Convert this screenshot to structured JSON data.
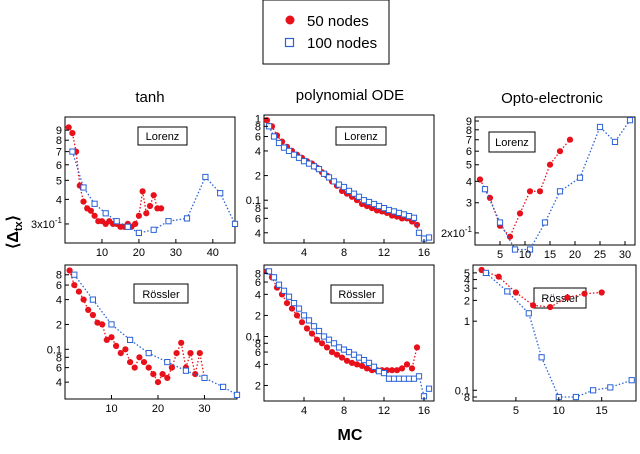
{
  "chart_data": {
    "type": "line",
    "xlabel": "MC",
    "ylabel": "⟨Δtx⟩",
    "ylabel_main": "⟨Δ",
    "ylabel_sub": "tx",
    "ylabel_end": "⟩",
    "legend": {
      "position": "top-center",
      "entries": [
        {
          "name": "50 nodes",
          "color": "#e8101a",
          "marker": "filled-circle",
          "style": "dotted"
        },
        {
          "name": "100 nodes",
          "color": "#2a62d6",
          "marker": "open-square",
          "style": "dotted"
        }
      ]
    },
    "columns": [
      {
        "title": "tanh"
      },
      {
        "title": "polynomial ODE"
      },
      {
        "title": "Opto-electronic"
      }
    ],
    "panels": [
      {
        "row": "Lorenz",
        "col": 0,
        "box_label": "Lorenz",
        "xlim": [
          0,
          46
        ],
        "ylim": [
          0.24,
          1.05
        ],
        "yscale": "log",
        "xticks": [
          {
            "v": 10,
            "t": "10"
          },
          {
            "v": 20,
            "t": "20"
          },
          {
            "v": 30,
            "t": "30"
          },
          {
            "v": 40,
            "t": "40"
          }
        ],
        "yticks": [
          {
            "v": 0.9,
            "t": "9"
          },
          {
            "v": 0.8,
            "t": "8"
          },
          {
            "v": 0.7,
            "t": "7"
          },
          {
            "v": 0.6,
            "t": "6"
          },
          {
            "v": 0.5,
            "t": "5"
          },
          {
            "v": 0.4,
            "t": "4"
          },
          {
            "v": 0.3,
            "t": "3x10"
          }
        ],
        "series": [
          {
            "name": "50 nodes",
            "x": [
              1,
              2,
              3,
              4,
              5,
              6,
              7,
              8,
              9,
              10,
              11,
              12,
              13,
              14,
              15,
              16,
              17,
              18,
              19,
              20,
              21,
              22,
              23,
              24,
              25,
              26
            ],
            "y": [
              0.93,
              0.87,
              0.7,
              0.47,
              0.39,
              0.36,
              0.35,
              0.33,
              0.31,
              0.31,
              0.3,
              0.31,
              0.3,
              0.3,
              0.29,
              0.29,
              0.3,
              0.29,
              0.3,
              0.33,
              0.44,
              0.34,
              0.37,
              0.42,
              0.36,
              0.36
            ]
          },
          {
            "name": "100 nodes",
            "x": [
              2,
              5,
              8,
              11,
              14,
              17,
              20,
              24,
              28,
              33,
              38,
              42,
              46
            ],
            "y": [
              0.7,
              0.46,
              0.38,
              0.34,
              0.31,
              0.29,
              0.27,
              0.28,
              0.31,
              0.32,
              0.52,
              0.43,
              0.3
            ]
          }
        ]
      },
      {
        "row": "Lorenz",
        "col": 1,
        "box_label": "Lorenz",
        "xlim": [
          0,
          17
        ],
        "ylim": [
          0.03,
          1.1
        ],
        "yscale": "log",
        "xticks": [
          {
            "v": 4,
            "t": "4"
          },
          {
            "v": 8,
            "t": "8"
          },
          {
            "v": 12,
            "t": "12"
          },
          {
            "v": 16,
            "t": "16"
          }
        ],
        "yticks": [
          {
            "v": 1,
            "t": "1"
          },
          {
            "v": 0.8,
            "t": "8"
          },
          {
            "v": 0.6,
            "t": "6"
          },
          {
            "v": 0.4,
            "t": "4"
          },
          {
            "v": 0.2,
            "t": "2"
          },
          {
            "v": 0.1,
            "t": "0.1"
          },
          {
            "v": 0.08,
            "t": "8"
          },
          {
            "v": 0.06,
            "t": "6"
          },
          {
            "v": 0.04,
            "t": "4"
          }
        ],
        "series": [
          {
            "name": "50 nodes",
            "x": [
              0.3,
              0.8,
              1.3,
              1.8,
              2.3,
              2.8,
              3.3,
              3.8,
              4.3,
              4.8,
              5.3,
              5.8,
              6.3,
              6.8,
              7.3,
              7.8,
              8.3,
              8.8,
              9.3,
              9.8,
              10.3,
              10.8,
              11.3,
              11.8,
              12.3,
              12.8,
              13.3,
              13.8,
              14.3,
              14.8,
              15.3
            ],
            "y": [
              0.95,
              0.8,
              0.62,
              0.52,
              0.45,
              0.4,
              0.36,
              0.33,
              0.3,
              0.28,
              0.25,
              0.22,
              0.2,
              0.17,
              0.15,
              0.13,
              0.12,
              0.11,
              0.1,
              0.09,
              0.085,
              0.08,
              0.075,
              0.073,
              0.07,
              0.065,
              0.063,
              0.06,
              0.06,
              0.055,
              0.05
            ]
          },
          {
            "name": "100 nodes",
            "x": [
              0.5,
              1,
              1.5,
              2,
              2.5,
              3,
              3.5,
              4,
              4.5,
              5,
              5.5,
              6,
              6.5,
              7,
              7.5,
              8,
              8.5,
              9,
              9.5,
              10,
              10.5,
              11,
              11.5,
              12,
              12.5,
              13,
              13.5,
              14,
              14.5,
              15,
              15.5,
              16,
              16.5
            ],
            "y": [
              0.8,
              0.6,
              0.5,
              0.44,
              0.4,
              0.36,
              0.33,
              0.3,
              0.28,
              0.26,
              0.24,
              0.21,
              0.19,
              0.17,
              0.155,
              0.145,
              0.13,
              0.12,
              0.11,
              0.1,
              0.095,
              0.09,
              0.085,
              0.08,
              0.076,
              0.073,
              0.07,
              0.067,
              0.064,
              0.061,
              0.04,
              0.034,
              0.035
            ]
          }
        ]
      },
      {
        "row": "Lorenz",
        "col": 2,
        "box_label": "Lorenz",
        "xlim": [
          0,
          32
        ],
        "ylim": [
          0.17,
          0.95
        ],
        "yscale": "log",
        "xticks": [
          {
            "v": 5,
            "t": "5"
          },
          {
            "v": 10,
            "t": "10"
          },
          {
            "v": 15,
            "t": "15"
          },
          {
            "v": 20,
            "t": "20"
          },
          {
            "v": 25,
            "t": "25"
          },
          {
            "v": 30,
            "t": "30"
          }
        ],
        "yticks": [
          {
            "v": 0.9,
            "t": "9"
          },
          {
            "v": 0.8,
            "t": "8"
          },
          {
            "v": 0.7,
            "t": "7"
          },
          {
            "v": 0.6,
            "t": "6"
          },
          {
            "v": 0.5,
            "t": "5"
          },
          {
            "v": 0.4,
            "t": "4"
          },
          {
            "v": 0.3,
            "t": "3"
          },
          {
            "v": 0.2,
            "t": "2x10"
          }
        ],
        "series": [
          {
            "name": "50 nodes",
            "x": [
              1,
              3,
              5,
              7,
              9,
              11,
              13,
              15,
              17,
              19
            ],
            "y": [
              0.41,
              0.32,
              0.22,
              0.19,
              0.26,
              0.35,
              0.35,
              0.5,
              0.6,
              0.7
            ]
          },
          {
            "name": "100 nodes",
            "x": [
              2,
              5,
              8,
              11,
              14,
              17,
              21,
              25,
              28,
              31
            ],
            "y": [
              0.36,
              0.23,
              0.16,
              0.16,
              0.23,
              0.35,
              0.42,
              0.83,
              0.68,
              0.91
            ]
          }
        ]
      },
      {
        "row": "Rossler",
        "col": 0,
        "box_label": "Rössler",
        "xlim": [
          0,
          37
        ],
        "ylim": [
          0.025,
          1.05
        ],
        "yscale": "log",
        "xticks": [
          {
            "v": 10,
            "t": "10"
          },
          {
            "v": 20,
            "t": "20"
          },
          {
            "v": 30,
            "t": "30"
          }
        ],
        "yticks": [
          {
            "v": 0.8,
            "t": "8"
          },
          {
            "v": 0.6,
            "t": "6"
          },
          {
            "v": 0.4,
            "t": "4"
          },
          {
            "v": 0.2,
            "t": "2"
          },
          {
            "v": 0.1,
            "t": "0.1"
          },
          {
            "v": 0.08,
            "t": "8"
          },
          {
            "v": 0.06,
            "t": "6"
          },
          {
            "v": 0.04,
            "t": "4"
          }
        ],
        "series": [
          {
            "name": "50 nodes",
            "x": [
              1,
              2,
              3,
              4,
              5,
              6,
              7,
              8,
              9,
              10,
              11,
              12,
              13,
              14,
              15,
              16,
              17,
              18,
              19,
              20,
              21,
              22,
              23,
              24,
              25,
              26,
              27,
              28,
              29,
              30
            ],
            "y": [
              0.9,
              0.6,
              0.5,
              0.4,
              0.3,
              0.26,
              0.21,
              0.2,
              0.13,
              0.14,
              0.11,
              0.09,
              0.1,
              0.07,
              0.06,
              0.08,
              0.07,
              0.06,
              0.05,
              0.04,
              0.05,
              0.045,
              0.06,
              0.09,
              0.12,
              0.06,
              0.09,
              0.05,
              0.09,
              0.045
            ]
          },
          {
            "name": "100 nodes",
            "x": [
              2,
              6,
              10,
              14,
              18,
              22,
              26,
              30,
              34,
              37
            ],
            "y": [
              0.8,
              0.4,
              0.2,
              0.13,
              0.09,
              0.07,
              0.055,
              0.045,
              0.035,
              0.028
            ]
          }
        ]
      },
      {
        "row": "Rossler",
        "col": 1,
        "box_label": "Rössler",
        "xlim": [
          0,
          17
        ],
        "ylim": [
          0.012,
          1.05
        ],
        "yscale": "log",
        "xticks": [
          {
            "v": 4,
            "t": "4"
          },
          {
            "v": 8,
            "t": "8"
          },
          {
            "v": 12,
            "t": "12"
          },
          {
            "v": 16,
            "t": "16"
          }
        ],
        "yticks": [
          {
            "v": 0.8,
            "t": "8"
          },
          {
            "v": 0.6,
            "t": "6"
          },
          {
            "v": 0.4,
            "t": "4"
          },
          {
            "v": 0.2,
            "t": "2"
          },
          {
            "v": 0.1,
            "t": "0.1"
          },
          {
            "v": 0.08,
            "t": "8"
          },
          {
            "v": 0.06,
            "t": "6"
          },
          {
            "v": 0.04,
            "t": "4"
          },
          {
            "v": 0.02,
            "t": "2"
          }
        ],
        "series": [
          {
            "name": "50 nodes",
            "x": [
              0.3,
              0.8,
              1.3,
              1.8,
              2.3,
              2.8,
              3.3,
              3.8,
              4.3,
              4.8,
              5.3,
              5.8,
              6.3,
              6.8,
              7.3,
              7.8,
              8.3,
              8.8,
              9.3,
              9.8,
              10.3,
              10.8,
              11.3,
              11.8,
              12.3,
              12.8,
              13.3,
              13.8,
              14.3,
              14.8,
              15.3
            ],
            "y": [
              0.85,
              0.7,
              0.5,
              0.4,
              0.3,
              0.25,
              0.2,
              0.16,
              0.13,
              0.11,
              0.09,
              0.08,
              0.07,
              0.06,
              0.055,
              0.05,
              0.045,
              0.042,
              0.04,
              0.038,
              0.035,
              0.033,
              0.033,
              0.033,
              0.033,
              0.033,
              0.033,
              0.035,
              0.04,
              0.035,
              0.07
            ]
          },
          {
            "name": "100 nodes",
            "x": [
              0.5,
              1,
              1.5,
              2,
              2.5,
              3,
              3.5,
              4,
              4.5,
              5,
              5.5,
              6,
              6.5,
              7,
              7.5,
              8,
              8.5,
              9,
              9.5,
              10,
              10.5,
              11,
              11.5,
              12,
              12.5,
              13,
              13.5,
              14,
              14.5,
              15,
              15.5,
              16,
              16.5
            ],
            "y": [
              0.85,
              0.7,
              0.55,
              0.45,
              0.37,
              0.3,
              0.25,
              0.2,
              0.17,
              0.14,
              0.12,
              0.1,
              0.09,
              0.08,
              0.07,
              0.065,
              0.06,
              0.055,
              0.05,
              0.046,
              0.042,
              0.037,
              0.032,
              0.03,
              0.025,
              0.025,
              0.025,
              0.025,
              0.025,
              0.025,
              0.027,
              0.014,
              0.018
            ]
          }
        ]
      },
      {
        "row": "Rossler",
        "col": 2,
        "box_label": "Rössler",
        "xlim": [
          0,
          19
        ],
        "ylim": [
          0.07,
          6.5
        ],
        "yscale": "log",
        "xticks": [
          {
            "v": 5,
            "t": "5"
          },
          {
            "v": 10,
            "t": "10"
          },
          {
            "v": 15,
            "t": "15"
          }
        ],
        "yticks": [
          {
            "v": 5,
            "t": "5"
          },
          {
            "v": 4,
            "t": "4"
          },
          {
            "v": 3,
            "t": "3"
          },
          {
            "v": 2,
            "t": "2"
          },
          {
            "v": 1,
            "t": "1"
          },
          {
            "v": 0.1,
            "t": "0.1"
          },
          {
            "v": 0.08,
            "t": "8"
          }
        ],
        "series": [
          {
            "name": "50 nodes",
            "x": [
              1,
              3,
              5,
              7,
              9,
              11,
              13,
              15
            ],
            "y": [
              5.5,
              4.4,
              2.6,
              1.7,
              1.6,
              2.2,
              2.5,
              2.6
            ]
          },
          {
            "name": "100 nodes",
            "x": [
              1.5,
              4,
              6.5,
              8,
              10,
              12,
              14,
              16,
              18.5
            ],
            "y": [
              5,
              2.7,
              1.3,
              0.3,
              0.08,
              0.08,
              0.1,
              0.11,
              0.14
            ]
          }
        ]
      }
    ]
  }
}
